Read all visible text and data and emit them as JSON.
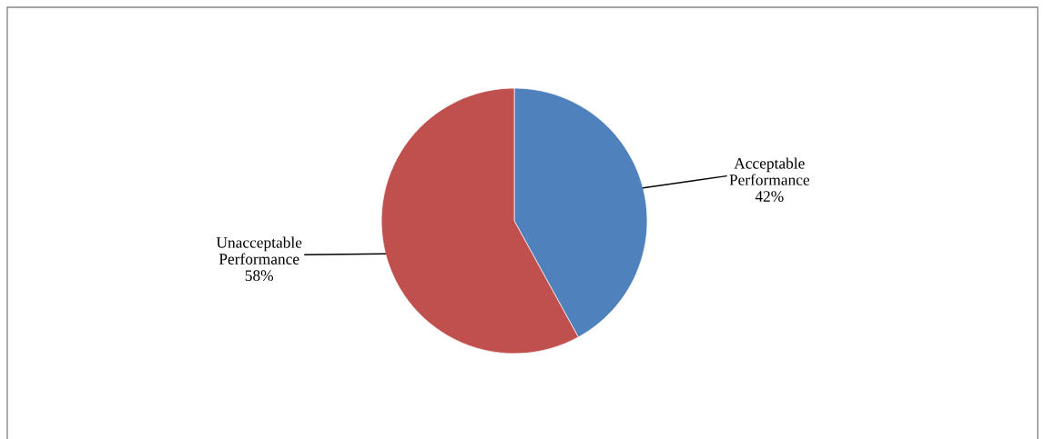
{
  "chart_data": {
    "type": "pie",
    "categories": [
      "Acceptable Performance",
      "Unacceptable Performance"
    ],
    "values": [
      42,
      58
    ],
    "colors": [
      "#4f81bd",
      "#c0504d"
    ],
    "value_labels": [
      "42%",
      "58%"
    ],
    "legend": false
  }
}
